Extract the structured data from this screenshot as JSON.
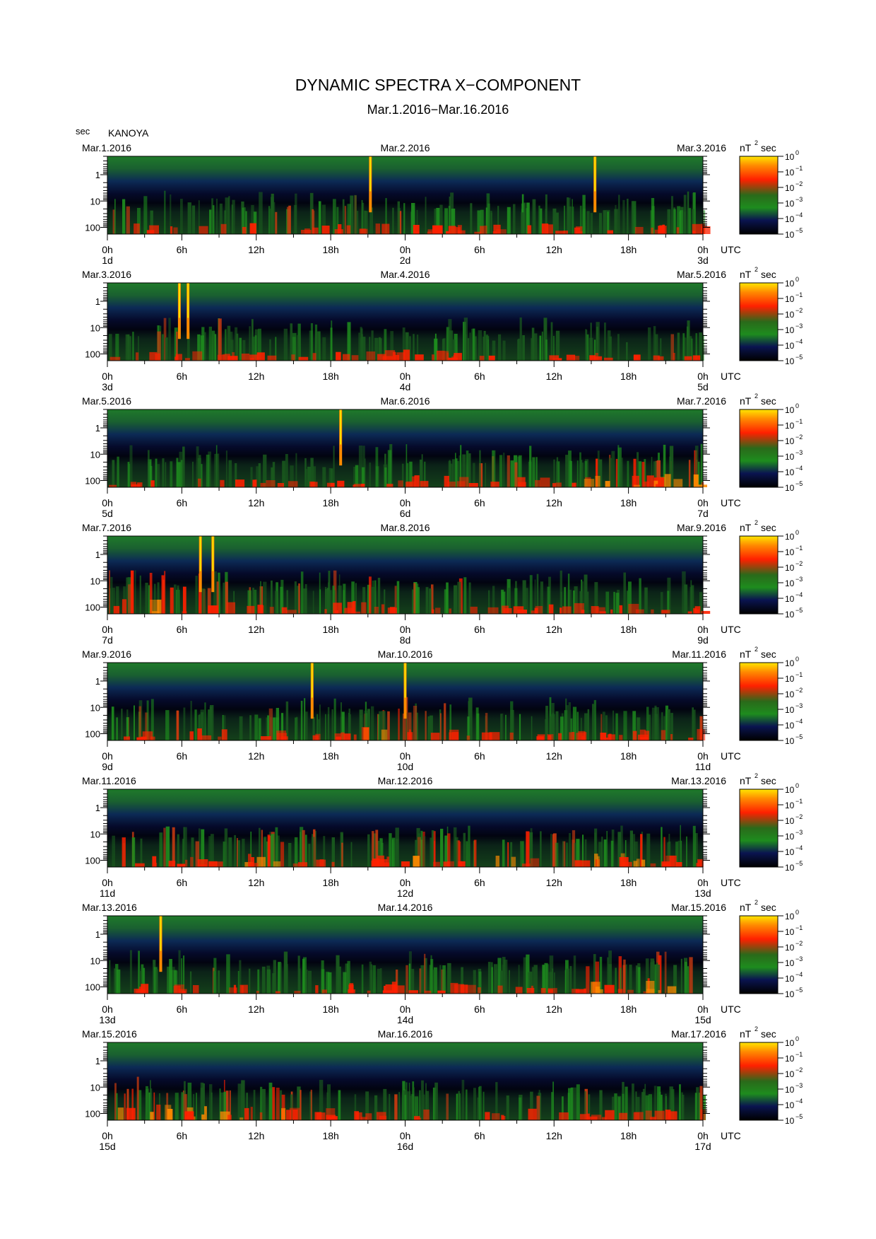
{
  "title": "DYNAMIC SPECTRA X−COMPONENT",
  "subtitle": "Mar.1.2016−Mar.16.2016",
  "station": "KANOYA",
  "yunit": "sec",
  "utc_label": "UTC",
  "cb_unit": "nT",
  "cb_unit_sup": "2",
  "cb_unit_sec": "sec",
  "colors": {
    "dark": "#000000",
    "navy": "#0a1450",
    "green": "#1e8c1e",
    "red": "#ff2000",
    "orange": "#ff8a00",
    "yellow": "#ffe600"
  },
  "chart_data": {
    "type": "heatmap",
    "x_ticks": [
      "0h",
      "6h",
      "12h",
      "18h",
      "0h",
      "6h",
      "12h",
      "18h",
      "0h"
    ],
    "y_ticks": [
      "1",
      "10",
      "100"
    ],
    "y_scale": "log",
    "ylim_sec": [
      0.2,
      180
    ],
    "colorbar": {
      "label_base": "10",
      "exponents": [
        "0",
        "−1",
        "−2",
        "−3",
        "−4",
        "−5"
      ],
      "range_log10": [
        -5,
        0
      ]
    },
    "panels": [
      {
        "start_date": "Mar.1.2016",
        "mid_date": "Mar.2.2016",
        "end_date": "Mar.3.2016",
        "day_labels": [
          "1d",
          "2d",
          "3d"
        ],
        "spikes_h": [
          21.2,
          39.3
        ],
        "activity": [
          0.9,
          0.95,
          0.9,
          1.0,
          0.9,
          0.8,
          0.8,
          0.85,
          0.8,
          0.9
        ]
      },
      {
        "start_date": "Mar.3.2016",
        "mid_date": "Mar.4.2016",
        "end_date": "Mar.5.2016",
        "day_labels": [
          "3d",
          "4d",
          "5d"
        ],
        "spikes_h": [
          5.8,
          6.5
        ],
        "activity": [
          0.9,
          0.9,
          0.7,
          0.8,
          0.9,
          0.8,
          0.7,
          0.8,
          0.6,
          0.9
        ]
      },
      {
        "start_date": "Mar.5.2016",
        "mid_date": "Mar.6.2016",
        "end_date": "Mar.7.2016",
        "day_labels": [
          "5d",
          "6d",
          "7d"
        ],
        "spikes_h": [
          18.8
        ],
        "activity": [
          0.8,
          0.8,
          0.6,
          0.6,
          0.7,
          1.0,
          1.0,
          1.0,
          1.2,
          1.3
        ]
      },
      {
        "start_date": "Mar.7.2016",
        "mid_date": "Mar.8.2016",
        "end_date": "Mar.9.2016",
        "day_labels": [
          "7d",
          "8d",
          "9d"
        ],
        "spikes_h": [
          7.5,
          8.5
        ],
        "activity": [
          1.3,
          1.1,
          0.9,
          1.0,
          1.1,
          1.1,
          0.9,
          0.9,
          0.8,
          0.8
        ]
      },
      {
        "start_date": "Mar.9.2016",
        "mid_date": "Mar.10.2016",
        "end_date": "Mar.11.2016",
        "day_labels": [
          "9d",
          "10d",
          "11d"
        ],
        "spikes_h": [
          16.5,
          24.0
        ],
        "activity": [
          1.0,
          1.0,
          0.9,
          0.8,
          1.2,
          1.0,
          0.9,
          0.8,
          0.9,
          1.0
        ]
      },
      {
        "start_date": "Mar.11.2016",
        "mid_date": "Mar.12.2016",
        "end_date": "Mar.13.2016",
        "day_labels": [
          "11d",
          "12d",
          "13d"
        ],
        "spikes_h": [],
        "activity": [
          1.1,
          1.0,
          1.2,
          1.0,
          1.1,
          1.3,
          1.2,
          1.1,
          1.2,
          1.1
        ]
      },
      {
        "start_date": "Mar.13.2016",
        "mid_date": "Mar.14.2016",
        "end_date": "Mar.15.2016",
        "day_labels": [
          "13d",
          "14d",
          "15d"
        ],
        "spikes_h": [
          4.3
        ],
        "activity": [
          0.9,
          0.9,
          0.7,
          0.8,
          1.0,
          1.0,
          0.8,
          0.7,
          1.3,
          1.4
        ]
      },
      {
        "start_date": "Mar.15.2016",
        "mid_date": "Mar.16.2016",
        "end_date": "Mar.17.2016",
        "day_labels": [
          "15d",
          "16d",
          "17d"
        ],
        "spikes_h": [],
        "activity": [
          1.4,
          1.3,
          1.2,
          1.1,
          1.0,
          1.0,
          0.9,
          1.0,
          0.9,
          1.0
        ]
      }
    ]
  }
}
